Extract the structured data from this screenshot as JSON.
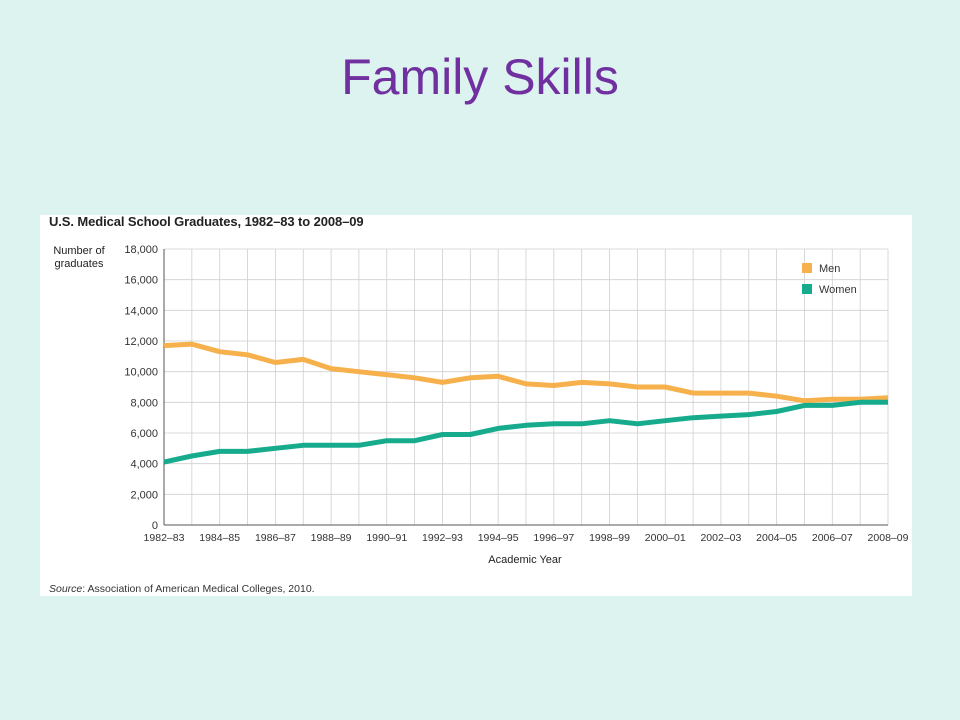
{
  "slide": {
    "title": "Family Skills"
  },
  "chart_data": {
    "type": "line",
    "title": "U.S. Medical School Graduates, 1982–83 to 2008–09",
    "ylabel_line1": "Number of",
    "ylabel_line2": "graduates",
    "xlabel": "Academic Year",
    "source_label": "Source",
    "source_text": ": Association of American Medical Colleges, 2010.",
    "ylim": [
      0,
      18000
    ],
    "yticks": [
      0,
      2000,
      4000,
      6000,
      8000,
      10000,
      12000,
      14000,
      16000,
      18000
    ],
    "ytick_labels": [
      "0",
      "2,000",
      "4,000",
      "6,000",
      "8,000",
      "10,000",
      "12,000",
      "14,000",
      "16,000",
      "18,000"
    ],
    "x": [
      "1982–83",
      "1983–84",
      "1984–85",
      "1985–86",
      "1986–87",
      "1987–88",
      "1988–89",
      "1989–90",
      "1990–91",
      "1991–92",
      "1992–93",
      "1993–94",
      "1994–95",
      "1995–96",
      "1996–97",
      "1997–98",
      "1998–99",
      "1999–00",
      "2000–01",
      "2001–02",
      "2002–03",
      "2003–04",
      "2004–05",
      "2005–06",
      "2006–07",
      "2007–08",
      "2008–09"
    ],
    "xtick_labels": [
      "1982–83",
      "",
      "1984–85",
      "",
      "1986–87",
      "",
      "1988–89",
      "",
      "1990–91",
      "",
      "1992–93",
      "",
      "1994–95",
      "",
      "1996–97",
      "",
      "1998–99",
      "",
      "2000–01",
      "",
      "2002–03",
      "",
      "2004–05",
      "",
      "2006–07",
      "",
      "2008–09"
    ],
    "grid": true,
    "legend_position": "top-right",
    "series": [
      {
        "name": "Men",
        "color": "#f6b04c",
        "values": [
          11700,
          11800,
          11300,
          11100,
          10600,
          10800,
          10200,
          10000,
          9800,
          9600,
          9300,
          9600,
          9700,
          9200,
          9100,
          9300,
          9200,
          9000,
          9000,
          8600,
          8600,
          8600,
          8400,
          8100,
          8200,
          8200,
          8300
        ]
      },
      {
        "name": "Women",
        "color": "#17ab8d",
        "values": [
          4100,
          4500,
          4800,
          4800,
          5000,
          5200,
          5200,
          5200,
          5500,
          5500,
          5900,
          5900,
          6300,
          6500,
          6600,
          6600,
          6800,
          6600,
          6800,
          7000,
          7100,
          7200,
          7400,
          7800,
          7800,
          8000,
          8000
        ]
      }
    ]
  }
}
